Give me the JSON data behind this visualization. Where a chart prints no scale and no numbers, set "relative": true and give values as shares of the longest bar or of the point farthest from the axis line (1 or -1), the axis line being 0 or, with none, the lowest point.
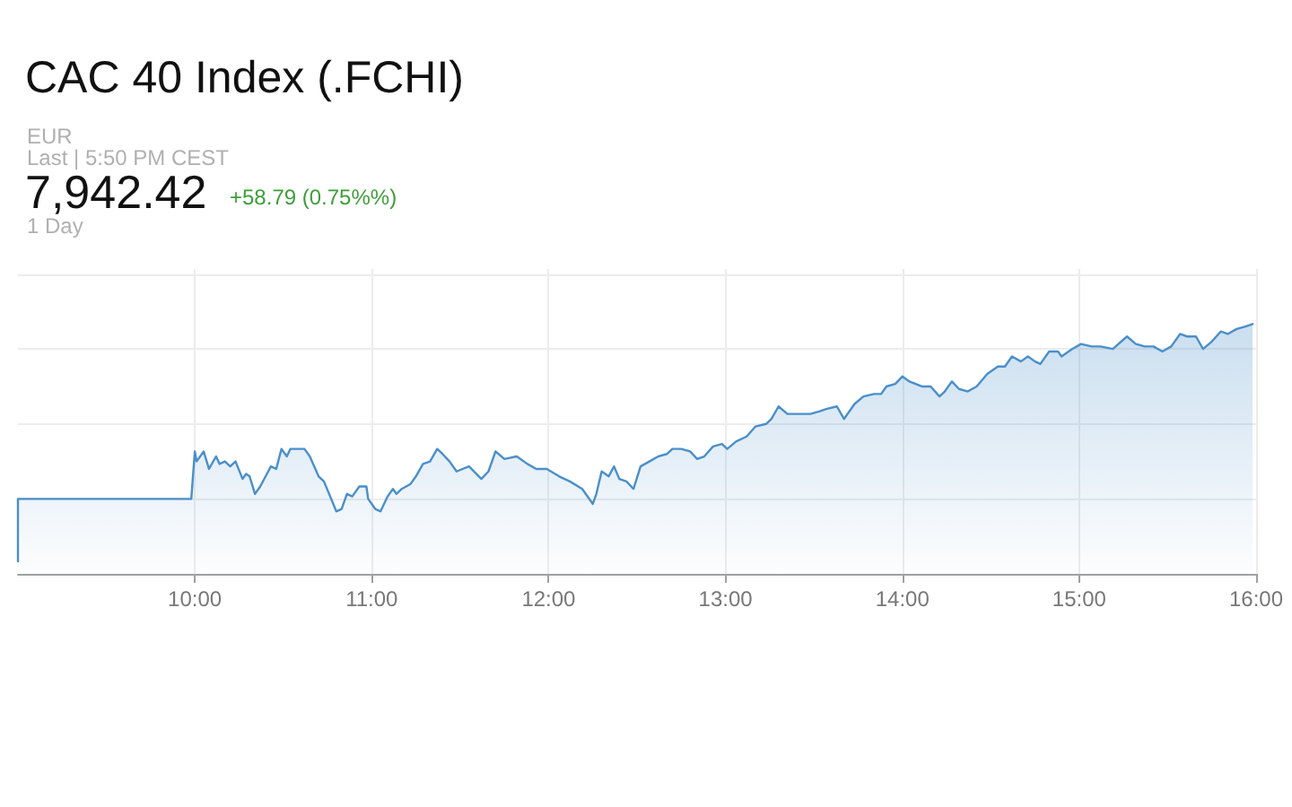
{
  "chart_data": {
    "type": "area",
    "title": "CAC 40 Index (.FCHI)",
    "annotations": [
      "EUR",
      "Last | 5:50 PM CEST",
      "7,942.42",
      "+58.79 (0.75%%)",
      "1 Day"
    ],
    "x": [
      9,
      9,
      9.98,
      10,
      10.01,
      10.05,
      10.08,
      10.12,
      10.14,
      10.17,
      10.2,
      10.23,
      10.27,
      10.29,
      10.31,
      10.34,
      10.37,
      10.4,
      10.43,
      10.46,
      10.49,
      10.52,
      10.54,
      10.62,
      10.65,
      10.7,
      10.73,
      10.8,
      10.83,
      10.86,
      10.89,
      10.93,
      10.97,
      10.98,
      11.02,
      11.05,
      11.09,
      11.12,
      11.14,
      11.17,
      11.22,
      11.25,
      11.29,
      11.33,
      11.37,
      11.4,
      11.44,
      11.48,
      11.55,
      11.62,
      11.66,
      11.7,
      11.75,
      11.82,
      11.88,
      11.93,
      11.99,
      12.06,
      12.12,
      12.19,
      12.25,
      12.27,
      12.3,
      12.34,
      12.37,
      12.4,
      12.44,
      12.48,
      12.52,
      12.57,
      12.62,
      12.67,
      12.7,
      12.75,
      12.8,
      12.84,
      12.88,
      12.93,
      12.98,
      13.01,
      13.06,
      13.12,
      13.17,
      13.23,
      13.26,
      13.3,
      13.35,
      13.42,
      13.48,
      13.53,
      13.57,
      13.63,
      13.67,
      13.73,
      13.78,
      13.84,
      13.88,
      13.91,
      13.96,
      14,
      14.04,
      14.11,
      14.16,
      14.21,
      14.24,
      14.28,
      14.32,
      14.37,
      14.42,
      14.48,
      14.54,
      14.58,
      14.62,
      14.67,
      14.71,
      14.75,
      14.78,
      14.83,
      14.88,
      14.9,
      14.96,
      15.01,
      15.07,
      15.12,
      15.19,
      15.27,
      15.32,
      15.37,
      15.42,
      15.47,
      15.52,
      15.57,
      15.61,
      15.66,
      15.7,
      15.75,
      15.8,
      15.84,
      15.89,
      15.94,
      15.98
    ],
    "values": [
      0.05,
      0.3,
      0.3,
      0.49,
      0.45,
      0.49,
      0.42,
      0.47,
      0.44,
      0.45,
      0.43,
      0.45,
      0.38,
      0.4,
      0.39,
      0.32,
      0.35,
      0.39,
      0.43,
      0.42,
      0.5,
      0.47,
      0.5,
      0.5,
      0.47,
      0.39,
      0.37,
      0.25,
      0.26,
      0.32,
      0.31,
      0.35,
      0.35,
      0.3,
      0.26,
      0.25,
      0.31,
      0.34,
      0.32,
      0.34,
      0.36,
      0.39,
      0.44,
      0.45,
      0.5,
      0.48,
      0.45,
      0.41,
      0.43,
      0.38,
      0.41,
      0.49,
      0.46,
      0.47,
      0.44,
      0.42,
      0.42,
      0.39,
      0.37,
      0.34,
      0.28,
      0.32,
      0.41,
      0.39,
      0.43,
      0.38,
      0.37,
      0.34,
      0.43,
      0.45,
      0.47,
      0.48,
      0.5,
      0.5,
      0.49,
      0.46,
      0.47,
      0.51,
      0.52,
      0.5,
      0.53,
      0.55,
      0.59,
      0.6,
      0.62,
      0.67,
      0.64,
      0.64,
      0.64,
      0.65,
      0.66,
      0.67,
      0.62,
      0.68,
      0.71,
      0.72,
      0.72,
      0.75,
      0.76,
      0.79,
      0.77,
      0.75,
      0.75,
      0.71,
      0.73,
      0.77,
      0.74,
      0.73,
      0.75,
      0.8,
      0.83,
      0.83,
      0.87,
      0.85,
      0.87,
      0.85,
      0.84,
      0.89,
      0.89,
      0.87,
      0.9,
      0.92,
      0.91,
      0.91,
      0.9,
      0.95,
      0.92,
      0.91,
      0.91,
      0.89,
      0.91,
      0.96,
      0.95,
      0.95,
      0.9,
      0.93,
      0.97,
      0.96,
      0.98,
      0.99,
      1
    ],
    "color": "#4a8fca",
    "relative": true,
    "xlim": [
      9,
      16
    ],
    "xticks": [
      {
        "value": 10,
        "label": "10:00"
      },
      {
        "value": 11,
        "label": "11:00"
      },
      {
        "value": 12,
        "label": "12:00"
      },
      {
        "value": 13,
        "label": "13:00"
      },
      {
        "value": 14,
        "label": "14:00"
      },
      {
        "value": 15,
        "label": "15:00"
      },
      {
        "value": 16,
        "label": "16:00"
      }
    ],
    "grid": true,
    "marker": "none",
    "line_style": "solid"
  }
}
